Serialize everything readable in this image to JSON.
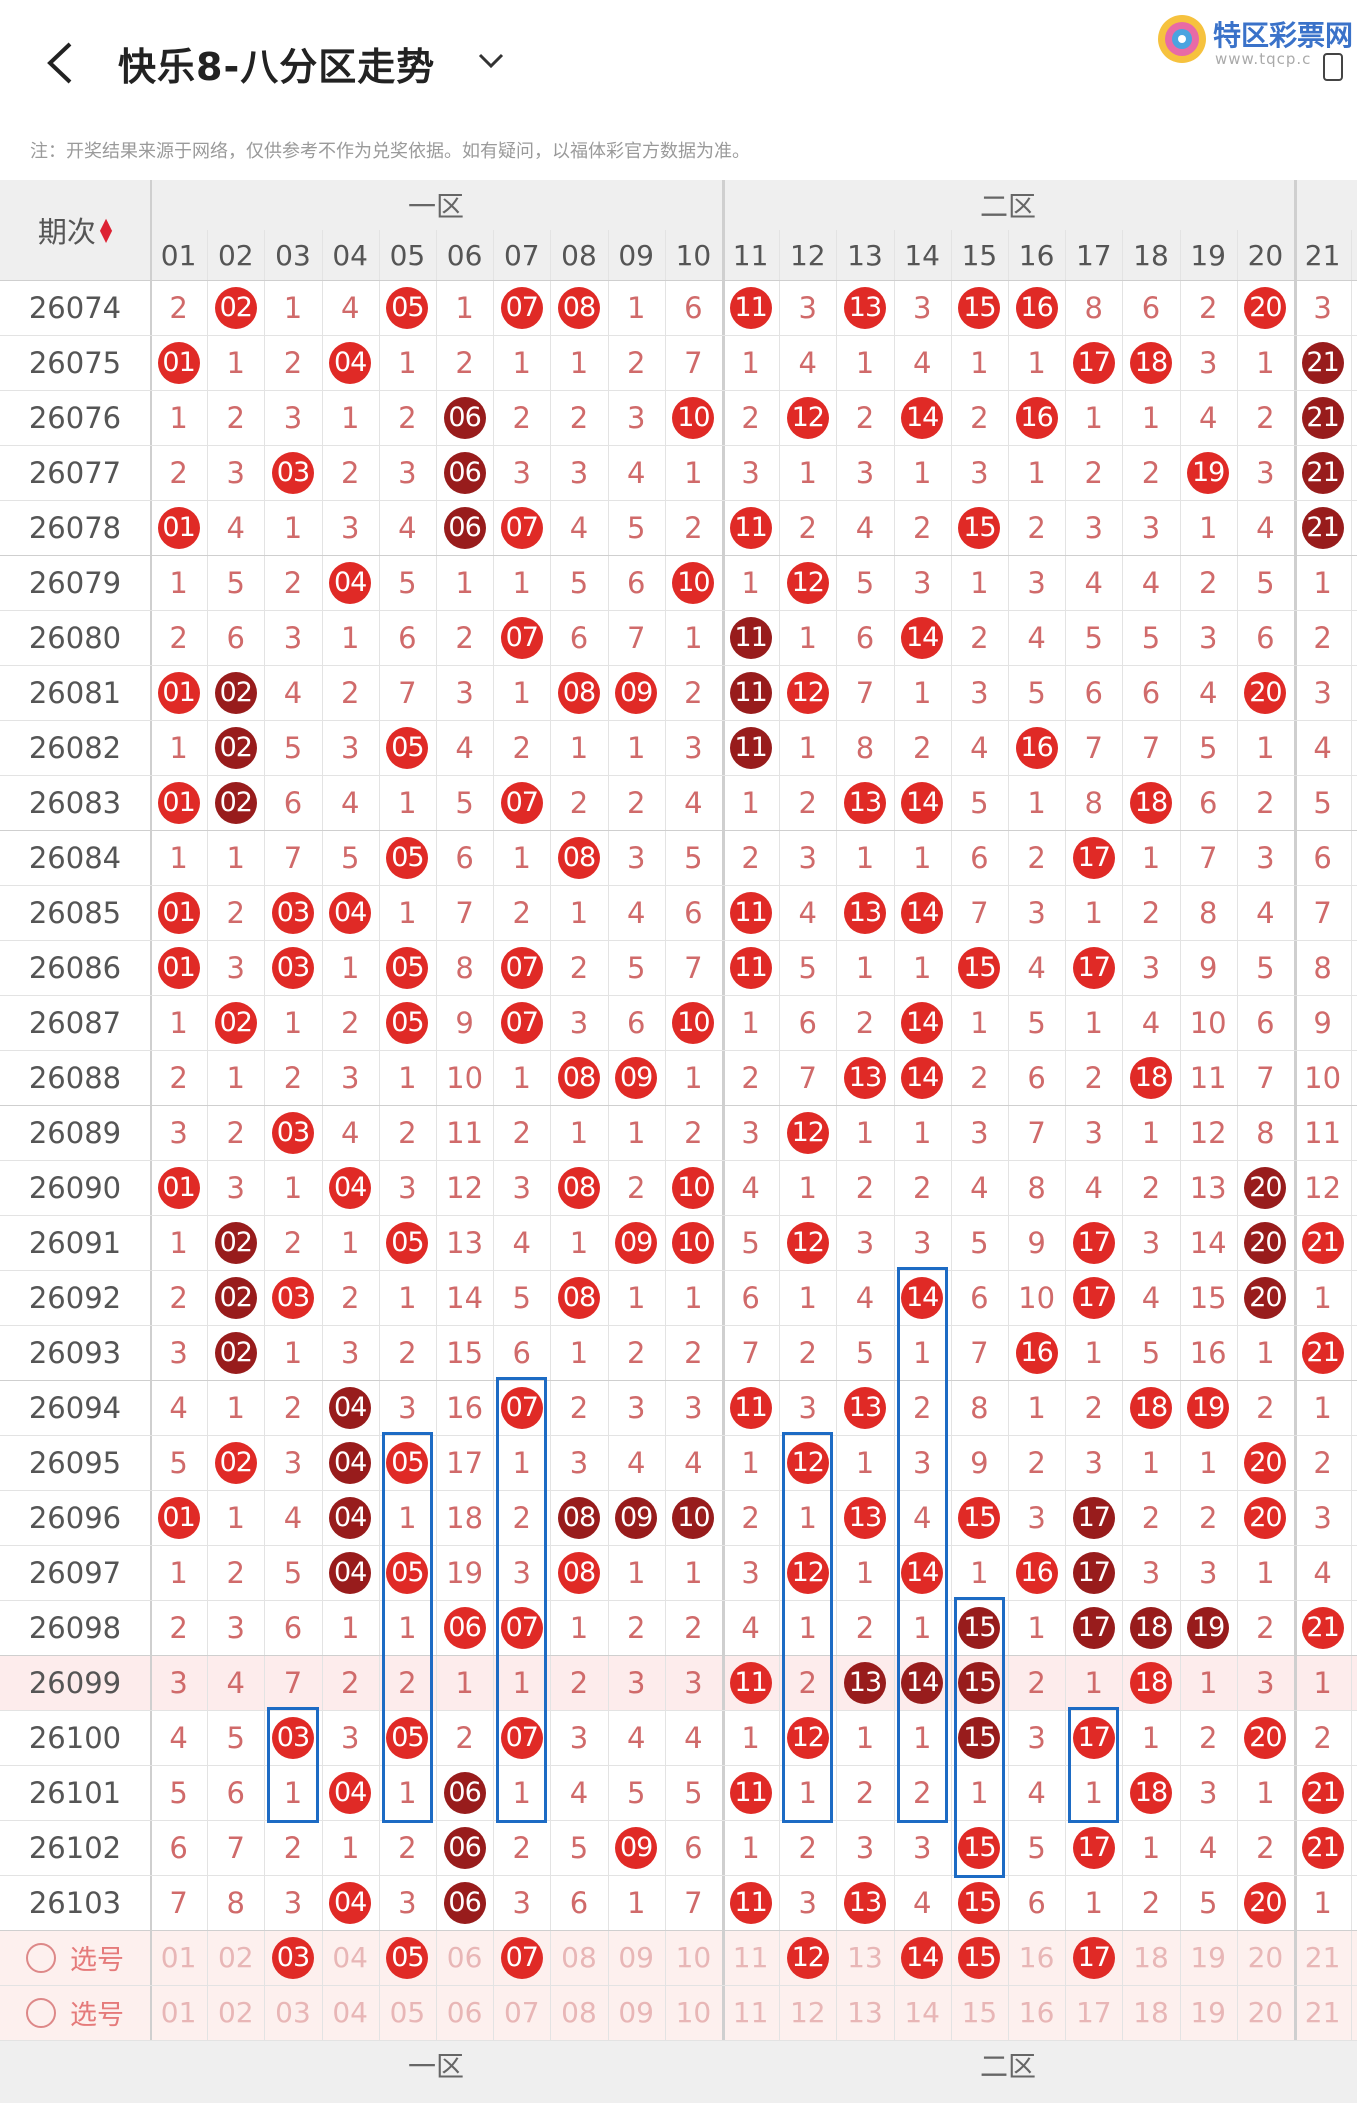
{
  "header": {
    "title": "快乐8-八分区走势",
    "logo_text": "特区彩票网",
    "logo_sub": "www.tqcp.c"
  },
  "note": "注：开奖结果来源于网络，仅供参考不作为兑奖依据。如有疑问，以福体彩官方数据为准。",
  "table": {
    "issue_header": "期次",
    "zones": [
      "一区",
      "二区"
    ],
    "columns": [
      "01",
      "02",
      "03",
      "04",
      "05",
      "06",
      "07",
      "08",
      "09",
      "10",
      "11",
      "12",
      "13",
      "14",
      "15",
      "16",
      "17",
      "18",
      "19",
      "20",
      "21"
    ],
    "rows": [
      {
        "issue": "26074",
        "cells": [
          "2",
          "02",
          "1",
          "4",
          "05",
          "1",
          "07",
          "08",
          "1",
          "6",
          "11",
          "3",
          "13",
          "3",
          "15",
          "16",
          "8",
          "6",
          "2",
          "20",
          "3"
        ],
        "dark": []
      },
      {
        "issue": "26075",
        "cells": [
          "01",
          "1",
          "2",
          "04",
          "1",
          "2",
          "1",
          "1",
          "2",
          "7",
          "1",
          "4",
          "1",
          "4",
          "1",
          "1",
          "17",
          "18",
          "3",
          "1",
          "21"
        ],
        "dark": [
          21
        ]
      },
      {
        "issue": "26076",
        "cells": [
          "1",
          "2",
          "3",
          "1",
          "2",
          "06",
          "2",
          "2",
          "3",
          "10",
          "2",
          "12",
          "2",
          "14",
          "2",
          "16",
          "1",
          "1",
          "4",
          "2",
          "21"
        ],
        "dark": [
          6,
          21
        ]
      },
      {
        "issue": "26077",
        "cells": [
          "2",
          "3",
          "03",
          "2",
          "3",
          "06",
          "3",
          "3",
          "4",
          "1",
          "3",
          "1",
          "3",
          "1",
          "3",
          "1",
          "2",
          "2",
          "19",
          "3",
          "21"
        ],
        "dark": [
          6,
          21
        ]
      },
      {
        "issue": "26078",
        "cells": [
          "01",
          "4",
          "1",
          "3",
          "4",
          "06",
          "07",
          "4",
          "5",
          "2",
          "11",
          "2",
          "4",
          "2",
          "15",
          "2",
          "3",
          "3",
          "1",
          "4",
          "21"
        ],
        "dark": [
          6,
          21
        ]
      },
      {
        "issue": "26079",
        "cells": [
          "1",
          "5",
          "2",
          "04",
          "5",
          "1",
          "1",
          "5",
          "6",
          "10",
          "1",
          "12",
          "5",
          "3",
          "1",
          "3",
          "4",
          "4",
          "2",
          "5",
          "1"
        ],
        "dark": []
      },
      {
        "issue": "26080",
        "cells": [
          "2",
          "6",
          "3",
          "1",
          "6",
          "2",
          "07",
          "6",
          "7",
          "1",
          "11",
          "1",
          "6",
          "14",
          "2",
          "4",
          "5",
          "5",
          "3",
          "6",
          "2"
        ],
        "dark": [
          11
        ]
      },
      {
        "issue": "26081",
        "cells": [
          "01",
          "02",
          "4",
          "2",
          "7",
          "3",
          "1",
          "08",
          "09",
          "2",
          "11",
          "12",
          "7",
          "1",
          "3",
          "5",
          "6",
          "6",
          "4",
          "20",
          "3"
        ],
        "dark": [
          2,
          11
        ]
      },
      {
        "issue": "26082",
        "cells": [
          "1",
          "02",
          "5",
          "3",
          "05",
          "4",
          "2",
          "1",
          "1",
          "3",
          "11",
          "1",
          "8",
          "2",
          "4",
          "16",
          "7",
          "7",
          "5",
          "1",
          "4"
        ],
        "dark": [
          2,
          11
        ]
      },
      {
        "issue": "26083",
        "cells": [
          "01",
          "02",
          "6",
          "4",
          "1",
          "5",
          "07",
          "2",
          "2",
          "4",
          "1",
          "2",
          "13",
          "14",
          "5",
          "1",
          "8",
          "18",
          "6",
          "2",
          "5"
        ],
        "dark": [
          2
        ]
      },
      {
        "issue": "26084",
        "cells": [
          "1",
          "1",
          "7",
          "5",
          "05",
          "6",
          "1",
          "08",
          "3",
          "5",
          "2",
          "3",
          "1",
          "1",
          "6",
          "2",
          "17",
          "1",
          "7",
          "3",
          "6"
        ],
        "dark": []
      },
      {
        "issue": "26085",
        "cells": [
          "01",
          "2",
          "03",
          "04",
          "1",
          "7",
          "2",
          "1",
          "4",
          "6",
          "11",
          "4",
          "13",
          "14",
          "7",
          "3",
          "1",
          "2",
          "8",
          "4",
          "7"
        ],
        "dark": []
      },
      {
        "issue": "26086",
        "cells": [
          "01",
          "3",
          "03",
          "1",
          "05",
          "8",
          "07",
          "2",
          "5",
          "7",
          "11",
          "5",
          "1",
          "1",
          "15",
          "4",
          "17",
          "3",
          "9",
          "5",
          "8"
        ],
        "dark": []
      },
      {
        "issue": "26087",
        "cells": [
          "1",
          "02",
          "1",
          "2",
          "05",
          "9",
          "07",
          "3",
          "6",
          "10",
          "1",
          "6",
          "2",
          "14",
          "1",
          "5",
          "1",
          "4",
          "10",
          "6",
          "9"
        ],
        "dark": []
      },
      {
        "issue": "26088",
        "cells": [
          "2",
          "1",
          "2",
          "3",
          "1",
          "10",
          "1",
          "08",
          "09",
          "1",
          "2",
          "7",
          "13",
          "14",
          "2",
          "6",
          "2",
          "18",
          "11",
          "7",
          "10"
        ],
        "dark": []
      },
      {
        "issue": "26089",
        "cells": [
          "3",
          "2",
          "03",
          "4",
          "2",
          "11",
          "2",
          "1",
          "1",
          "2",
          "3",
          "12",
          "1",
          "1",
          "3",
          "7",
          "3",
          "1",
          "12",
          "8",
          "11"
        ],
        "dark": []
      },
      {
        "issue": "26090",
        "cells": [
          "01",
          "3",
          "1",
          "04",
          "3",
          "12",
          "3",
          "08",
          "2",
          "10",
          "4",
          "1",
          "2",
          "2",
          "4",
          "8",
          "4",
          "2",
          "13",
          "20",
          "12"
        ],
        "dark": [
          20
        ]
      },
      {
        "issue": "26091",
        "cells": [
          "1",
          "02",
          "2",
          "1",
          "05",
          "13",
          "4",
          "1",
          "09",
          "10",
          "5",
          "12",
          "3",
          "3",
          "5",
          "9",
          "17",
          "3",
          "14",
          "20",
          "21"
        ],
        "dark": [
          2,
          20
        ]
      },
      {
        "issue": "26092",
        "cells": [
          "2",
          "02",
          "03",
          "2",
          "1",
          "14",
          "5",
          "08",
          "1",
          "1",
          "6",
          "1",
          "4",
          "14",
          "6",
          "10",
          "17",
          "4",
          "15",
          "20",
          "1"
        ],
        "dark": [
          2,
          20
        ]
      },
      {
        "issue": "26093",
        "cells": [
          "3",
          "02",
          "1",
          "3",
          "2",
          "15",
          "6",
          "1",
          "2",
          "2",
          "7",
          "2",
          "5",
          "1",
          "7",
          "16",
          "1",
          "5",
          "16",
          "1",
          "21"
        ],
        "dark": [
          2
        ]
      },
      {
        "issue": "26094",
        "cells": [
          "4",
          "1",
          "2",
          "04",
          "3",
          "16",
          "07",
          "2",
          "3",
          "3",
          "11",
          "3",
          "13",
          "2",
          "8",
          "1",
          "2",
          "18",
          "19",
          "2",
          "1"
        ],
        "dark": [
          4
        ]
      },
      {
        "issue": "26095",
        "cells": [
          "5",
          "02",
          "3",
          "04",
          "05",
          "17",
          "1",
          "3",
          "4",
          "4",
          "1",
          "12",
          "1",
          "3",
          "9",
          "2",
          "3",
          "1",
          "1",
          "20",
          "2"
        ],
        "dark": [
          4
        ]
      },
      {
        "issue": "26096",
        "cells": [
          "01",
          "1",
          "4",
          "04",
          "1",
          "18",
          "2",
          "08",
          "09",
          "10",
          "2",
          "1",
          "13",
          "4",
          "15",
          "3",
          "17",
          "2",
          "2",
          "20",
          "3"
        ],
        "dark": [
          4,
          8,
          9,
          10,
          17
        ]
      },
      {
        "issue": "26097",
        "cells": [
          "1",
          "2",
          "5",
          "04",
          "05",
          "19",
          "3",
          "08",
          "1",
          "1",
          "3",
          "12",
          "1",
          "14",
          "1",
          "16",
          "17",
          "3",
          "3",
          "1",
          "4"
        ],
        "dark": [
          4,
          17
        ]
      },
      {
        "issue": "26098",
        "cells": [
          "2",
          "3",
          "6",
          "1",
          "1",
          "06",
          "07",
          "1",
          "2",
          "2",
          "4",
          "1",
          "2",
          "1",
          "15",
          "1",
          "17",
          "18",
          "19",
          "2",
          "21"
        ],
        "dark": [
          15,
          17,
          18,
          19
        ]
      },
      {
        "issue": "26099",
        "cells": [
          "3",
          "4",
          "7",
          "2",
          "2",
          "1",
          "1",
          "2",
          "3",
          "3",
          "11",
          "2",
          "13",
          "14",
          "15",
          "2",
          "1",
          "18",
          "1",
          "3",
          "1"
        ],
        "dark": [
          13,
          14,
          15
        ]
      },
      {
        "issue": "26100",
        "cells": [
          "4",
          "5",
          "03",
          "3",
          "05",
          "2",
          "07",
          "3",
          "4",
          "4",
          "1",
          "12",
          "1",
          "1",
          "15",
          "3",
          "17",
          "1",
          "2",
          "20",
          "2"
        ],
        "dark": [
          15
        ]
      },
      {
        "issue": "26101",
        "cells": [
          "5",
          "6",
          "1",
          "04",
          "1",
          "06",
          "1",
          "4",
          "5",
          "5",
          "11",
          "1",
          "2",
          "2",
          "1",
          "4",
          "1",
          "18",
          "3",
          "1",
          "21"
        ],
        "dark": [
          6
        ]
      },
      {
        "issue": "26102",
        "cells": [
          "6",
          "7",
          "2",
          "1",
          "2",
          "06",
          "2",
          "5",
          "09",
          "6",
          "1",
          "2",
          "3",
          "3",
          "15",
          "5",
          "17",
          "1",
          "4",
          "2",
          "21"
        ],
        "dark": [
          6
        ]
      },
      {
        "issue": "26103",
        "cells": [
          "7",
          "8",
          "3",
          "04",
          "3",
          "06",
          "3",
          "6",
          "1",
          "7",
          "11",
          "3",
          "13",
          "4",
          "15",
          "6",
          "1",
          "2",
          "5",
          "20",
          "1"
        ],
        "dark": [
          6
        ]
      }
    ],
    "pick_label": "选号",
    "pick_rows": [
      {
        "selected": [
          "03",
          "05",
          "07",
          "12",
          "14",
          "15",
          "17"
        ]
      },
      {
        "selected": []
      }
    ]
  },
  "colors": {
    "ball_red": "#e02a26",
    "ball_dark": "#981c1c",
    "highlight": "#1d6bc4"
  }
}
